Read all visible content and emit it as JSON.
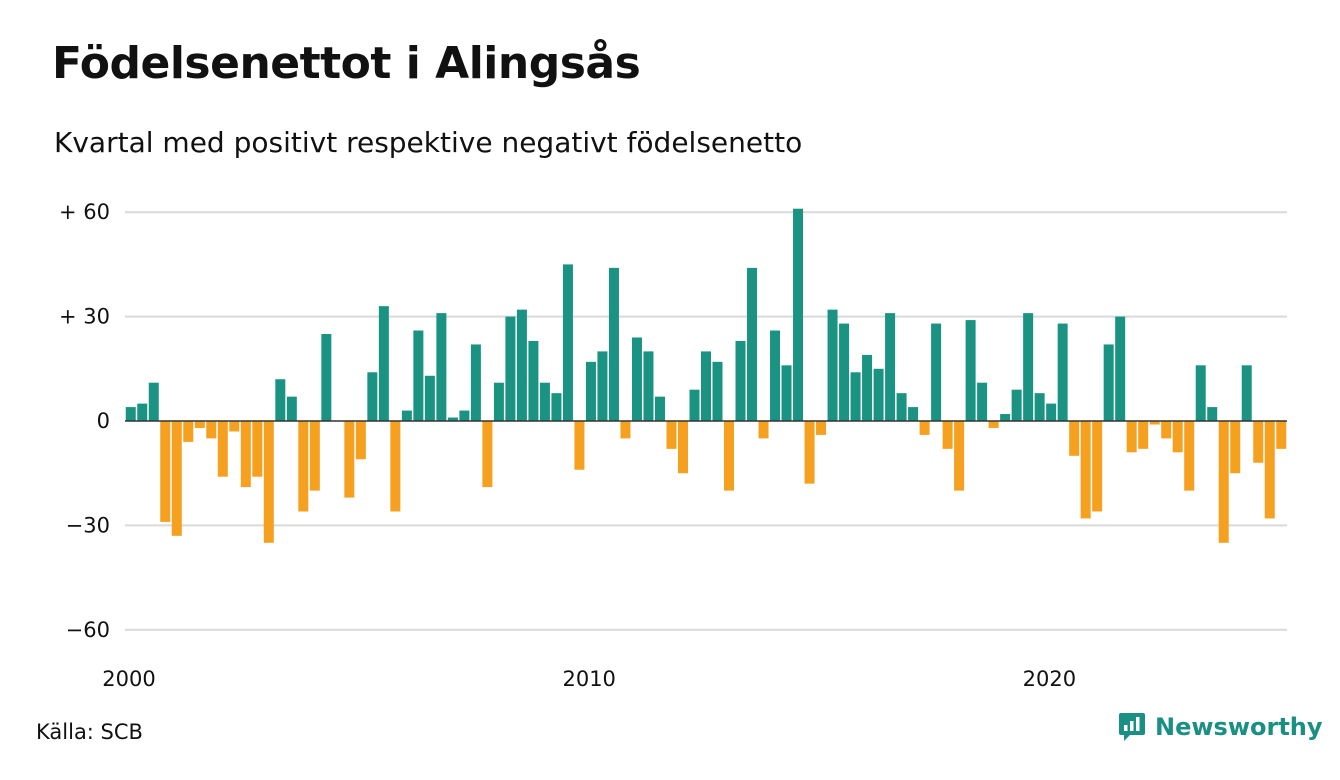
{
  "title": "Födelsenettot i Alingsås",
  "subtitle": "Kvartal med positivt respektive negativt födelsenetto",
  "source": "Källa: SCB",
  "brand": {
    "name": "Newsworthy",
    "icon": "newsworthy-logo-icon"
  },
  "colors": {
    "positive": "#1a9383",
    "negative": "#f5a01e",
    "grid": "#d9d9d9",
    "axis": "#333333",
    "brand": "#1a8f84"
  },
  "chart_data": {
    "type": "bar",
    "title": "Födelsenettot i Alingsås",
    "subtitle": "Kvartal med positivt respektive negativt födelsenetto",
    "xlabel": "",
    "ylabel": "",
    "ylim": [
      -60,
      60
    ],
    "yticks": [
      60,
      30,
      0,
      -30,
      -60
    ],
    "ytick_labels": [
      "+ 60",
      "+ 30",
      "0",
      "−30",
      "−60"
    ],
    "xticks": [
      "2000",
      "2010",
      "2020"
    ],
    "grid": true,
    "start": "2000 Q1",
    "frequency": "quarterly",
    "values": [
      4,
      5,
      11,
      -29,
      -33,
      -6,
      -2,
      -5,
      -16,
      -3,
      -19,
      -16,
      -35,
      12,
      7,
      -26,
      -20,
      25,
      0,
      -22,
      -11,
      14,
      33,
      -26,
      3,
      26,
      13,
      31,
      1,
      3,
      22,
      -19,
      11,
      30,
      32,
      23,
      11,
      8,
      45,
      -14,
      17,
      20,
      44,
      -5,
      24,
      20,
      7,
      -8,
      -15,
      9,
      20,
      17,
      -20,
      23,
      44,
      -5,
      26,
      16,
      61,
      -18,
      -4,
      32,
      28,
      14,
      19,
      15,
      31,
      8,
      4,
      -4,
      28,
      -8,
      -20,
      29,
      11,
      -2,
      2,
      9,
      31,
      8,
      5,
      28,
      -10,
      -28,
      -26,
      22,
      30,
      -9,
      -8,
      -1,
      -5,
      -9,
      -20,
      16,
      4,
      -35,
      -15,
      16,
      -12,
      -28,
      -8
    ]
  }
}
